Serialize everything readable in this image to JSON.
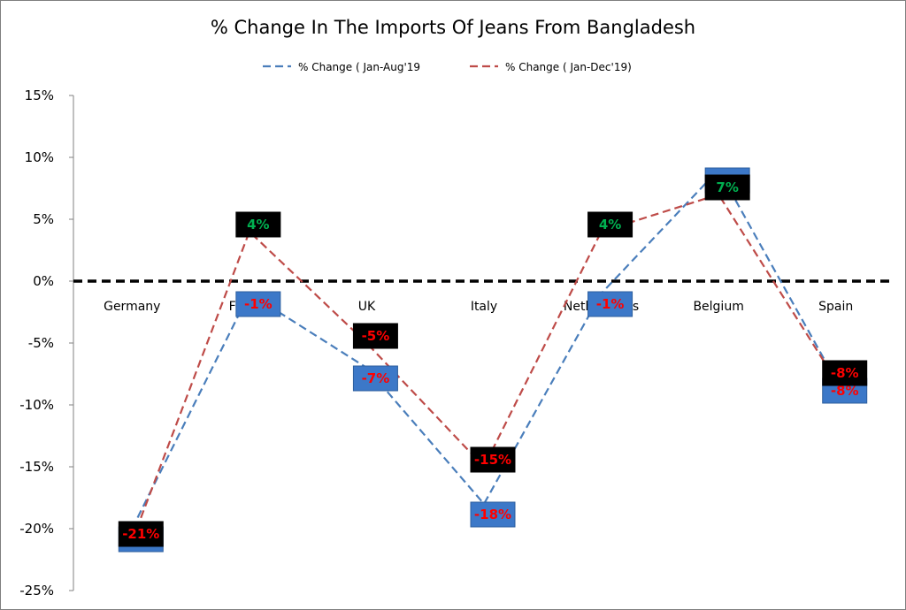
{
  "chart_data": {
    "type": "line",
    "title": "% Change In The Imports Of Jeans From Bangladesh",
    "categories": [
      "Germany",
      "France",
      "UK",
      "Italy",
      "Netherlands",
      "Belgium",
      "Spain"
    ],
    "series": [
      {
        "name": "% Change ( Jan-Aug'19",
        "values": [
          -20,
          -1,
          -7,
          -18,
          -1,
          9,
          -8
        ],
        "labels": [
          "-20%",
          "-1%",
          "-7%",
          "-18%",
          "-1%",
          "9%",
          "-8%"
        ],
        "color": "#4a7ebb",
        "label_box_color": "#3c78c8"
      },
      {
        "name": "% Change ( Jan-Dec'19)",
        "values": [
          -21,
          4,
          -5,
          -15,
          4,
          7,
          -8
        ],
        "labels": [
          "-21%",
          "4%",
          "-5%",
          "-15%",
          "4%",
          "7%",
          "-8%"
        ],
        "color": "#be4b48",
        "label_box_color": "#000000"
      }
    ],
    "positive_label_color": "#00b050",
    "negative_label_color": "#ff0000",
    "ylim": [
      -25,
      15
    ],
    "y_tick_step": 5,
    "y_tick_labels": [
      "15%",
      "10%",
      "5%",
      "0%",
      "-5%",
      "-10%",
      "-15%",
      "-20%",
      "-25%"
    ],
    "zero_line": true,
    "grid": false,
    "legend_position": "top"
  }
}
